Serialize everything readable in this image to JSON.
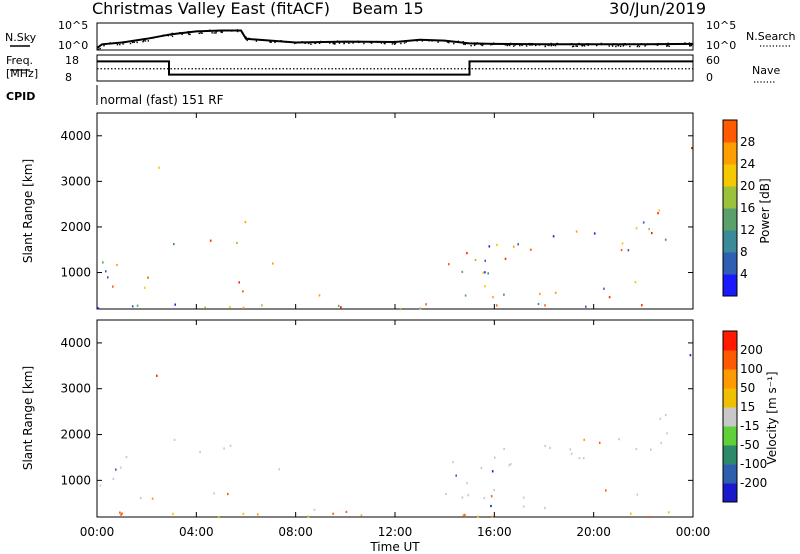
{
  "header": {
    "title": "Christmas Valley East (fitACF)",
    "beam": "Beam 15",
    "date": "30/Jun/2019"
  },
  "panels": {
    "nsky_label": "N.Sky",
    "nsearch_label": "N.Search",
    "freq_label_1": "Freq.",
    "freq_label_2": "[MHz]",
    "nave_label": "Nave",
    "cpid_label": "CPID",
    "cpid_text": "normal (fast) 151 RF",
    "noise_ticks": [
      "10^5",
      "10^0"
    ],
    "freq_ticks": [
      "18",
      "8"
    ],
    "nave_ticks": [
      "60",
      "0"
    ]
  },
  "colors": {
    "axis": "#000000",
    "power_scale": [
      "#1a1aff",
      "#2e5fb5",
      "#3a8a9a",
      "#5aa06a",
      "#9bc23a",
      "#f5c800",
      "#ff9e00",
      "#ff5a00",
      "#ff2000"
    ],
    "velocity_scale": [
      "#1a1acc",
      "#2e5faf",
      "#2c8a6a",
      "#5fcf3a",
      "#c8c8c8",
      "#f0c000",
      "#ff9a00",
      "#ff5a00",
      "#ff1a00"
    ]
  },
  "chart_data": [
    {
      "type": "line",
      "name": "noise-panel",
      "series": [
        {
          "name": "N.Sky",
          "x_hours": [
            0,
            0.2,
            1,
            2,
            3,
            4,
            5,
            5.8,
            6,
            8,
            10,
            12,
            13,
            14,
            15,
            16,
            18,
            20,
            22,
            24
          ],
          "log10_values": [
            0,
            0.8,
            1.2,
            2.0,
            3.0,
            3.6,
            3.8,
            3.8,
            2.0,
            1.2,
            1.4,
            1.3,
            1.8,
            1.6,
            1.0,
            0.9,
            0.8,
            0.8,
            0.8,
            0.9
          ]
        }
      ],
      "yticks": [
        "10^5",
        "10^0"
      ]
    },
    {
      "type": "line",
      "name": "frequency-panel",
      "series": [
        {
          "name": "Freq",
          "x_hours": [
            0,
            2.9,
            2.9,
            15,
            15,
            24
          ],
          "values": [
            16,
            16,
            10,
            10,
            16,
            16
          ]
        },
        {
          "name": "Nave",
          "x_hours": [
            0,
            24
          ],
          "values": [
            28,
            28
          ]
        }
      ],
      "yticks_left": [
        "18",
        "8"
      ],
      "yticks_right": [
        "60",
        "0"
      ]
    },
    {
      "type": "heatmap",
      "name": "power",
      "ylabel": "Slant Range [km]",
      "yticks": [
        1000,
        2000,
        3000,
        4000
      ],
      "ylim": [
        200,
        4500
      ],
      "colorbar": {
        "label": "Power [dB]",
        "ticks": [
          4,
          8,
          12,
          16,
          20,
          24,
          28
        ]
      }
    },
    {
      "type": "heatmap",
      "name": "velocity",
      "ylabel": "Slant Range [km]",
      "yticks": [
        1000,
        2000,
        3000,
        4000
      ],
      "ylim": [
        200,
        4500
      ],
      "colorbar": {
        "label": "Velocity [m s⁻¹]",
        "ticks": [
          200,
          100,
          50,
          15,
          -15,
          -50,
          -100,
          -200
        ]
      }
    }
  ],
  "xaxis": {
    "label": "Time UT",
    "ticks": [
      "00:00",
      "04:00",
      "08:00",
      "12:00",
      "16:00",
      "20:00",
      "00:00"
    ]
  }
}
